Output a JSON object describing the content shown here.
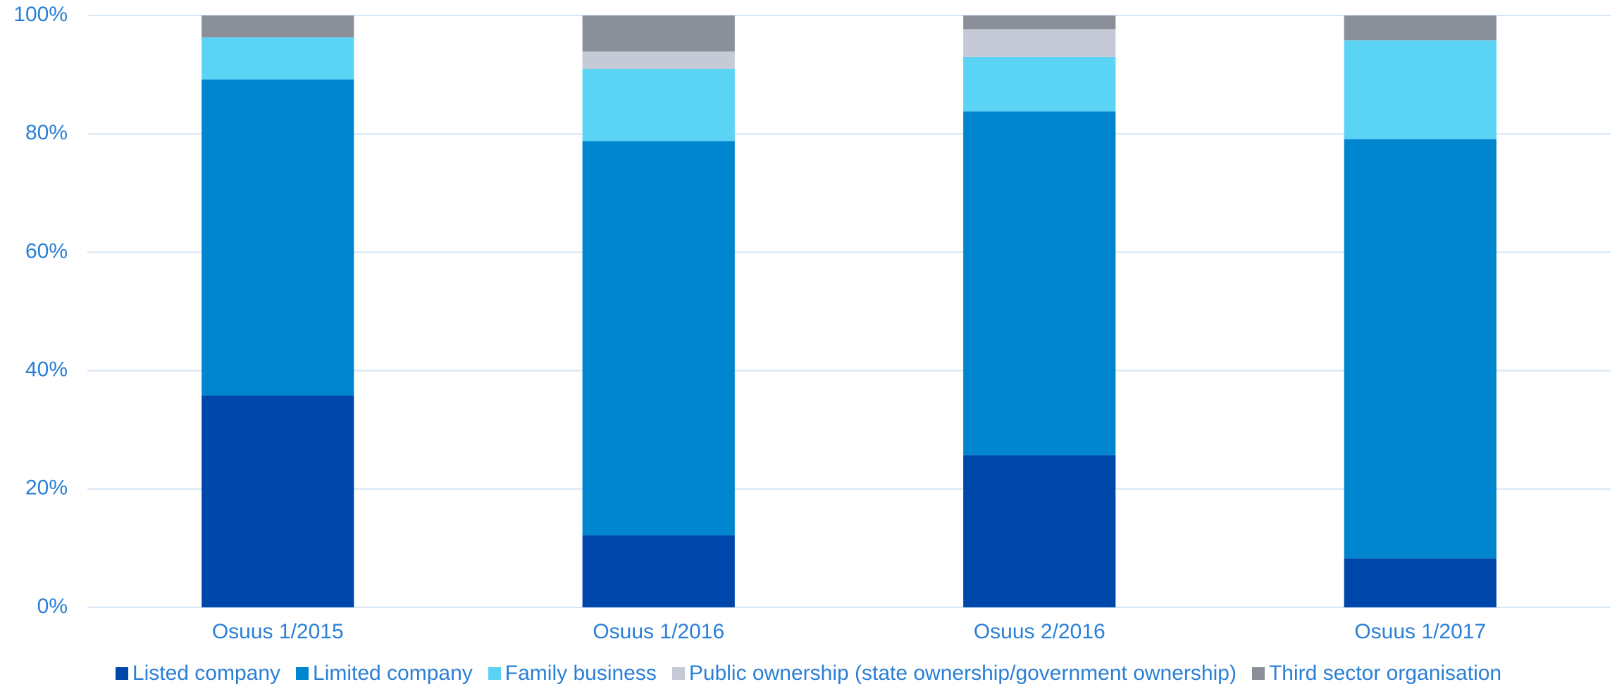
{
  "chart_data": {
    "type": "stacked_bar",
    "categories": [
      "Osuus 1/2015",
      "Osuus 1/2016",
      "Osuus 2/2016",
      "Osuus 1/2017"
    ],
    "series": [
      {
        "name": "Listed company",
        "color": "#0047ab",
        "values": [
          35.8,
          12.2,
          25.7,
          8.3
        ]
      },
      {
        "name": "Limited company",
        "color": "#0085cf",
        "values": [
          53.4,
          66.6,
          58.1,
          70.8
        ]
      },
      {
        "name": "Family business",
        "color": "#5bd3f5",
        "values": [
          7.1,
          12.2,
          9.2,
          16.7
        ]
      },
      {
        "name": "Public ownership (state ownership/government ownership)",
        "color": "#c5cad6",
        "values": [
          0,
          2.9,
          4.7,
          0
        ]
      },
      {
        "name": "Third sector organisation",
        "color": "#8a8f99",
        "values": [
          3.7,
          6.1,
          2.3,
          4.2
        ]
      }
    ],
    "ylim": [
      0,
      100
    ],
    "yticks": [
      {
        "value": 0,
        "label": "0%"
      },
      {
        "value": 20,
        "label": "20%"
      },
      {
        "value": 40,
        "label": "40%"
      },
      {
        "value": 60,
        "label": "60%"
      },
      {
        "value": 80,
        "label": "80%"
      },
      {
        "value": 100,
        "label": "100%"
      }
    ],
    "grid": true,
    "legend": "bottom"
  }
}
